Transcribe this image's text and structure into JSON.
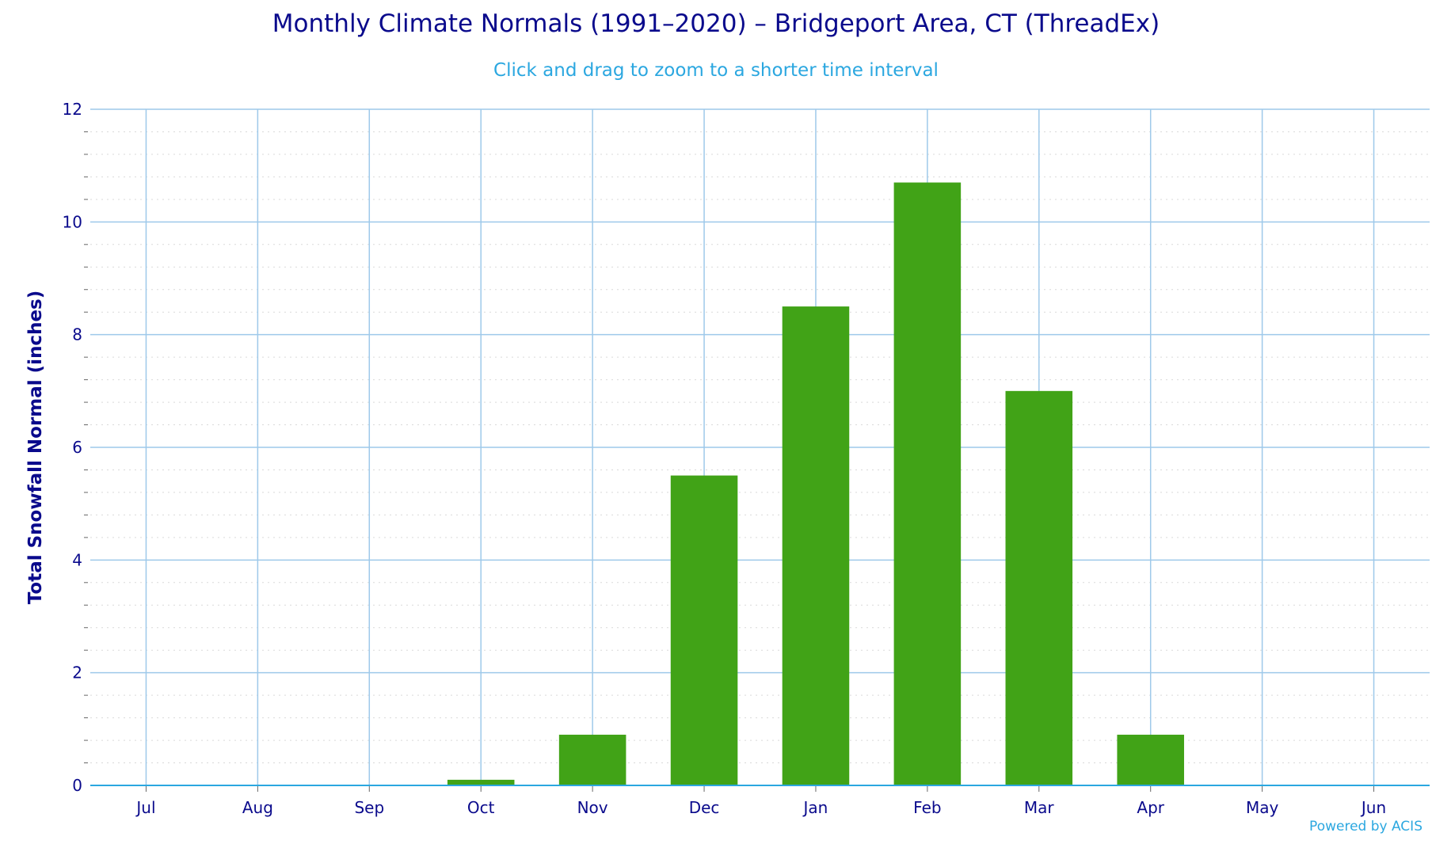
{
  "chart_data": {
    "type": "bar",
    "title": "Monthly Climate Normals (1991–2020) – Bridgeport Area, CT (ThreadEx)",
    "subtitle": "Click and drag to zoom to a shorter time interval",
    "credit": "Powered by ACIS",
    "xlabel": "",
    "ylabel": "Total Snowfall Normal (inches)",
    "categories": [
      "Jul",
      "Aug",
      "Sep",
      "Oct",
      "Nov",
      "Dec",
      "Jan",
      "Feb",
      "Mar",
      "Apr",
      "May",
      "Jun"
    ],
    "values": [
      0,
      0,
      0,
      0.1,
      0.9,
      5.5,
      8.5,
      10.7,
      7.0,
      0.9,
      0,
      0
    ],
    "ylim": [
      0,
      12
    ],
    "yticks": [
      "0",
      "2",
      "4",
      "6",
      "8",
      "10",
      "12"
    ],
    "grid": true,
    "bar_color": "#41a317",
    "grid_color": "#9ec9ea",
    "text_color": "#0a0a8c"
  }
}
